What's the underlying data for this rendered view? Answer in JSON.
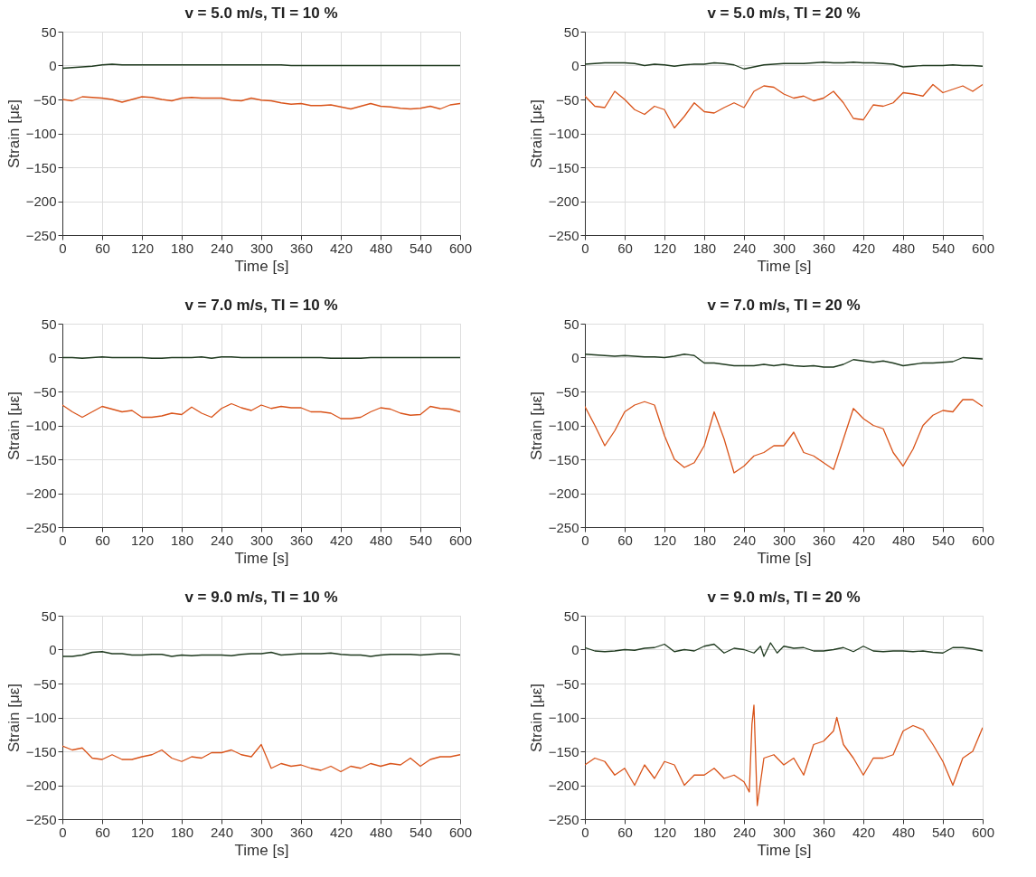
{
  "chart_data": [
    {
      "type": "line",
      "title": "v = 5.0 m/s, TI = 10 %",
      "xlabel": "Time [s]",
      "ylabel": "Strain [με]",
      "xlim": [
        0,
        600
      ],
      "xticks": [
        0,
        60,
        120,
        180,
        240,
        300,
        360,
        420,
        480,
        540,
        600
      ],
      "ylim": [
        -250,
        50
      ],
      "yticks": [
        -250,
        -200,
        -150,
        -100,
        -50,
        0,
        50
      ],
      "grid": true,
      "line_style": "solid",
      "x": [
        0,
        15,
        30,
        45,
        60,
        75,
        90,
        105,
        120,
        135,
        150,
        165,
        180,
        195,
        210,
        225,
        240,
        255,
        270,
        285,
        300,
        315,
        330,
        345,
        360,
        375,
        390,
        405,
        420,
        435,
        450,
        465,
        480,
        495,
        510,
        525,
        540,
        555,
        570,
        585,
        600
      ],
      "series": [
        {
          "color": "#1f3a1f",
          "values": [
            -4,
            -3,
            -2,
            -1,
            1,
            2,
            1,
            1,
            1,
            1,
            1,
            1,
            1,
            1,
            1,
            1,
            1,
            1,
            1,
            1,
            1,
            1,
            1,
            0,
            0,
            0,
            0,
            0,
            0,
            0,
            0,
            0,
            0,
            0,
            0,
            0,
            0,
            0,
            0,
            0,
            0
          ]
        },
        {
          "color": "#d95319",
          "values": [
            -50,
            -52,
            -46,
            -47,
            -48,
            -50,
            -54,
            -50,
            -46,
            -47,
            -50,
            -52,
            -48,
            -47,
            -48,
            -48,
            -48,
            -51,
            -52,
            -48,
            -51,
            -52,
            -55,
            -57,
            -56,
            -59,
            -59,
            -58,
            -61,
            -64,
            -60,
            -56,
            -60,
            -61,
            -63,
            -64,
            -63,
            -60,
            -64,
            -58,
            -56
          ]
        }
      ]
    },
    {
      "type": "line",
      "title": "v = 5.0 m/s, TI = 20 %",
      "xlabel": "Time [s]",
      "ylabel": "Strain [με]",
      "xlim": [
        0,
        600
      ],
      "xticks": [
        0,
        60,
        120,
        180,
        240,
        300,
        360,
        420,
        480,
        540,
        600
      ],
      "ylim": [
        -250,
        50
      ],
      "yticks": [
        -250,
        -200,
        -150,
        -100,
        -50,
        0,
        50
      ],
      "grid": true,
      "line_style": "solid",
      "x": [
        0,
        15,
        30,
        45,
        60,
        75,
        90,
        105,
        120,
        135,
        150,
        165,
        180,
        195,
        210,
        225,
        240,
        255,
        270,
        285,
        300,
        315,
        330,
        345,
        360,
        375,
        390,
        405,
        420,
        435,
        450,
        465,
        480,
        495,
        510,
        525,
        540,
        555,
        570,
        585,
        600
      ],
      "series": [
        {
          "color": "#1f3a1f",
          "values": [
            2,
            3,
            4,
            4,
            4,
            3,
            0,
            2,
            1,
            -1,
            1,
            2,
            2,
            4,
            3,
            1,
            -5,
            -2,
            1,
            2,
            3,
            3,
            3,
            4,
            5,
            4,
            4,
            5,
            4,
            4,
            3,
            2,
            -2,
            -1,
            0,
            0,
            0,
            1,
            0,
            0,
            -1
          ]
        },
        {
          "color": "#d95319",
          "values": [
            -45,
            -60,
            -62,
            -38,
            -50,
            -65,
            -72,
            -60,
            -65,
            -92,
            -75,
            -55,
            -68,
            -70,
            -62,
            -55,
            -62,
            -38,
            -30,
            -32,
            -42,
            -48,
            -45,
            -52,
            -48,
            -38,
            -55,
            -78,
            -80,
            -58,
            -60,
            -55,
            -40,
            -42,
            -45,
            -28,
            -40,
            -35,
            -30,
            -38,
            -28
          ]
        }
      ]
    },
    {
      "type": "line",
      "title": "v = 7.0 m/s, TI = 10 %",
      "xlabel": "Time [s]",
      "ylabel": "Strain [με]",
      "xlim": [
        0,
        600
      ],
      "xticks": [
        0,
        60,
        120,
        180,
        240,
        300,
        360,
        420,
        480,
        540,
        600
      ],
      "ylim": [
        -250,
        50
      ],
      "yticks": [
        -250,
        -200,
        -150,
        -100,
        -50,
        0,
        50
      ],
      "grid": true,
      "line_style": "solid",
      "x": [
        0,
        15,
        30,
        45,
        60,
        75,
        90,
        105,
        120,
        135,
        150,
        165,
        180,
        195,
        210,
        225,
        240,
        255,
        270,
        285,
        300,
        315,
        330,
        345,
        360,
        375,
        390,
        405,
        420,
        435,
        450,
        465,
        480,
        495,
        510,
        525,
        540,
        555,
        570,
        585,
        600
      ],
      "series": [
        {
          "color": "#1f3a1f",
          "values": [
            0,
            0,
            -1,
            0,
            1,
            0,
            0,
            0,
            0,
            -1,
            -1,
            0,
            0,
            0,
            1,
            -1,
            1,
            1,
            0,
            0,
            0,
            0,
            0,
            0,
            0,
            0,
            0,
            -1,
            -1,
            -1,
            -1,
            0,
            0,
            0,
            0,
            0,
            0,
            0,
            0,
            0,
            0
          ]
        },
        {
          "color": "#d95319",
          "values": [
            -70,
            -80,
            -88,
            -80,
            -72,
            -76,
            -80,
            -78,
            -88,
            -88,
            -86,
            -82,
            -84,
            -73,
            -82,
            -88,
            -75,
            -68,
            -74,
            -78,
            -70,
            -75,
            -72,
            -74,
            -74,
            -80,
            -80,
            -82,
            -90,
            -90,
            -88,
            -80,
            -74,
            -76,
            -82,
            -85,
            -84,
            -72,
            -75,
            -76,
            -80
          ]
        }
      ]
    },
    {
      "type": "line",
      "title": "v = 7.0 m/s, TI = 20 %",
      "xlabel": "Time [s]",
      "ylabel": "Strain [με]",
      "xlim": [
        0,
        600
      ],
      "xticks": [
        0,
        60,
        120,
        180,
        240,
        300,
        360,
        420,
        480,
        540,
        600
      ],
      "ylim": [
        -250,
        50
      ],
      "yticks": [
        -250,
        -200,
        -150,
        -100,
        -50,
        0,
        50
      ],
      "grid": true,
      "line_style": "solid",
      "x": [
        0,
        15,
        30,
        45,
        60,
        75,
        90,
        105,
        120,
        135,
        150,
        165,
        180,
        195,
        210,
        225,
        240,
        255,
        270,
        285,
        300,
        315,
        330,
        345,
        360,
        375,
        390,
        405,
        420,
        435,
        450,
        465,
        480,
        495,
        510,
        525,
        540,
        555,
        570,
        585,
        600
      ],
      "series": [
        {
          "color": "#1f3a1f",
          "values": [
            5,
            4,
            3,
            2,
            3,
            2,
            1,
            1,
            0,
            2,
            5,
            3,
            -8,
            -8,
            -10,
            -12,
            -12,
            -12,
            -10,
            -12,
            -10,
            -12,
            -13,
            -12,
            -14,
            -14,
            -10,
            -3,
            -5,
            -7,
            -5,
            -8,
            -12,
            -10,
            -8,
            -8,
            -7,
            -6,
            0,
            -1,
            -2
          ]
        },
        {
          "color": "#d95319",
          "values": [
            -72,
            -100,
            -130,
            -108,
            -80,
            -70,
            -65,
            -70,
            -115,
            -150,
            -162,
            -155,
            -130,
            -80,
            -120,
            -170,
            -160,
            -145,
            -140,
            -130,
            -130,
            -110,
            -140,
            -145,
            -155,
            -165,
            -120,
            -75,
            -90,
            -100,
            -105,
            -140,
            -160,
            -135,
            -100,
            -85,
            -78,
            -80,
            -62,
            -62,
            -72
          ]
        }
      ]
    },
    {
      "type": "line",
      "title": "v = 9.0 m/s, TI = 10 %",
      "xlabel": "Time [s]",
      "ylabel": "Strain [με]",
      "xlim": [
        0,
        600
      ],
      "xticks": [
        0,
        60,
        120,
        180,
        240,
        300,
        360,
        420,
        480,
        540,
        600
      ],
      "ylim": [
        -250,
        50
      ],
      "yticks": [
        -250,
        -200,
        -150,
        -100,
        -50,
        0,
        50
      ],
      "grid": true,
      "line_style": "solid",
      "x": [
        0,
        15,
        30,
        45,
        60,
        75,
        90,
        105,
        120,
        135,
        150,
        165,
        180,
        195,
        210,
        225,
        240,
        255,
        270,
        285,
        300,
        315,
        330,
        345,
        360,
        375,
        390,
        405,
        420,
        435,
        450,
        465,
        480,
        495,
        510,
        525,
        540,
        555,
        570,
        585,
        600
      ],
      "series": [
        {
          "color": "#1f3a1f",
          "values": [
            -10,
            -10,
            -8,
            -4,
            -3,
            -6,
            -6,
            -8,
            -8,
            -7,
            -7,
            -10,
            -8,
            -9,
            -8,
            -8,
            -8,
            -9,
            -7,
            -6,
            -6,
            -4,
            -8,
            -7,
            -6,
            -6,
            -6,
            -5,
            -7,
            -8,
            -8,
            -10,
            -8,
            -7,
            -7,
            -7,
            -8,
            -7,
            -6,
            -6,
            -8
          ]
        },
        {
          "color": "#d95319",
          "values": [
            -142,
            -148,
            -145,
            -160,
            -162,
            -155,
            -162,
            -162,
            -158,
            -155,
            -148,
            -160,
            -165,
            -158,
            -160,
            -152,
            -152,
            -148,
            -155,
            -158,
            -140,
            -175,
            -168,
            -172,
            -170,
            -175,
            -178,
            -172,
            -180,
            -172,
            -175,
            -168,
            -172,
            -168,
            -170,
            -160,
            -172,
            -162,
            -158,
            -158,
            -155
          ]
        }
      ]
    },
    {
      "type": "line",
      "title": "v = 9.0 m/s, TI = 20 %",
      "xlabel": "Time [s]",
      "ylabel": "Strain [με]",
      "xlim": [
        0,
        600
      ],
      "xticks": [
        0,
        60,
        120,
        180,
        240,
        300,
        360,
        420,
        480,
        540,
        600
      ],
      "ylim": [
        -250,
        50
      ],
      "yticks": [
        -250,
        -200,
        -150,
        -100,
        -50,
        0,
        50
      ],
      "grid": true,
      "line_style": "solid",
      "series": [
        {
          "color": "#1f3a1f",
          "x": [
            0,
            15,
            30,
            45,
            60,
            75,
            90,
            105,
            120,
            135,
            150,
            165,
            180,
            195,
            210,
            225,
            240,
            255,
            265,
            270,
            280,
            290,
            300,
            315,
            330,
            345,
            360,
            375,
            390,
            405,
            420,
            435,
            450,
            465,
            480,
            495,
            510,
            525,
            540,
            555,
            570,
            585,
            600
          ],
          "values": [
            3,
            -2,
            -3,
            -2,
            0,
            -1,
            2,
            3,
            8,
            -3,
            0,
            -2,
            5,
            8,
            -5,
            2,
            0,
            -5,
            5,
            -10,
            10,
            -5,
            5,
            2,
            3,
            -2,
            -2,
            0,
            3,
            -3,
            5,
            -2,
            -3,
            -2,
            -2,
            -3,
            -2,
            -4,
            -5,
            3,
            3,
            1,
            -2
          ]
        },
        {
          "color": "#d95319",
          "x": [
            0,
            15,
            30,
            45,
            60,
            75,
            90,
            105,
            120,
            135,
            150,
            165,
            180,
            195,
            210,
            225,
            240,
            248,
            252,
            255,
            260,
            270,
            285,
            300,
            315,
            330,
            345,
            360,
            375,
            380,
            390,
            405,
            420,
            435,
            450,
            465,
            480,
            495,
            510,
            525,
            540,
            555,
            570,
            585,
            600
          ],
          "values": [
            -170,
            -160,
            -165,
            -185,
            -175,
            -200,
            -170,
            -190,
            -165,
            -170,
            -200,
            -185,
            -185,
            -175,
            -190,
            -185,
            -195,
            -210,
            -110,
            -82,
            -230,
            -160,
            -155,
            -170,
            -160,
            -185,
            -140,
            -135,
            -120,
            -100,
            -140,
            -160,
            -185,
            -160,
            -160,
            -155,
            -120,
            -112,
            -118,
            -140,
            -165,
            -200,
            -160,
            -150,
            -115
          ]
        }
      ]
    }
  ]
}
